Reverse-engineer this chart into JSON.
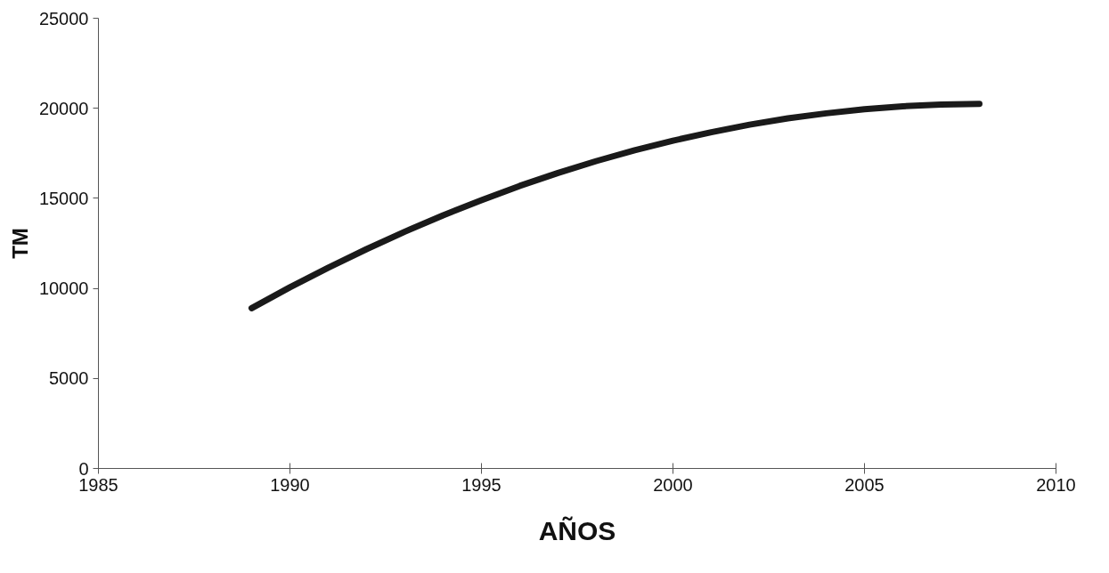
{
  "chart_data": {
    "type": "line",
    "xlabel": "AÑOS",
    "ylabel": "TM",
    "x": [
      1989,
      1990,
      1991,
      1992,
      1993,
      1994,
      1995,
      1996,
      1997,
      1998,
      1999,
      2000,
      2001,
      2002,
      2003,
      2004,
      2005,
      2006,
      2007,
      2008
    ],
    "series": [
      {
        "color": "#1a1a1a",
        "values": [
          8900,
          10060,
          11150,
          12180,
          13150,
          14060,
          14900,
          15690,
          16410,
          17070,
          17670,
          18200,
          18670,
          19090,
          19440,
          19720,
          19950,
          20110,
          20210,
          20250
        ]
      }
    ],
    "xlim": [
      1985,
      2010
    ],
    "xticks": [
      1985,
      1990,
      1995,
      2000,
      2005,
      2010
    ],
    "ylim": [
      0,
      25000
    ],
    "yticks": [
      0,
      5000,
      10000,
      15000,
      20000,
      25000
    ],
    "grid": false,
    "marker": "none",
    "line_style": "solid"
  }
}
